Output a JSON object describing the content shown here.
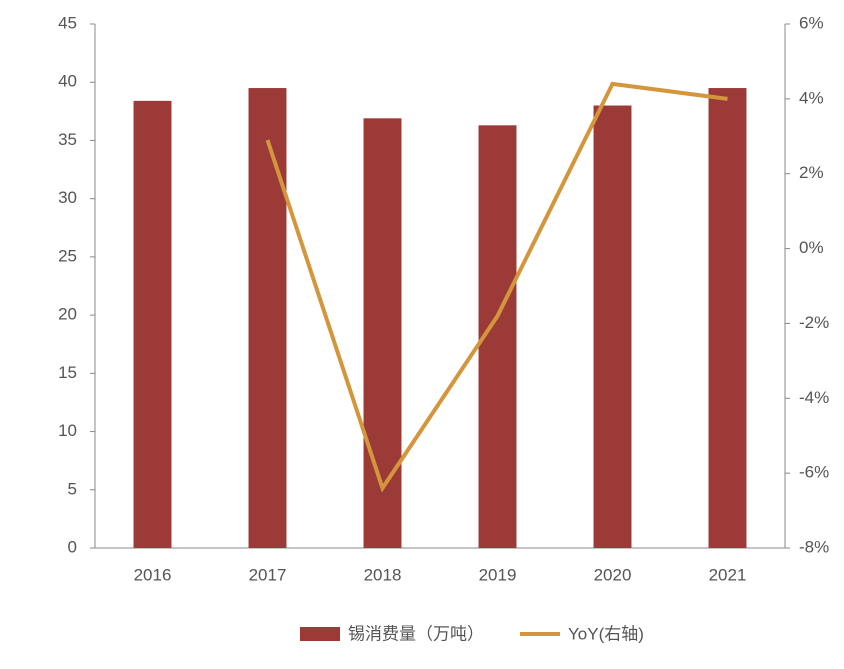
{
  "chart_data": {
    "type": "bar-line",
    "categories": [
      "2016",
      "2017",
      "2018",
      "2019",
      "2020",
      "2021"
    ],
    "series": [
      {
        "name": "锡消费量（万吨）",
        "type": "bar",
        "color": "#9b3a37",
        "values": [
          38.4,
          39.5,
          36.9,
          36.3,
          38.0,
          39.5
        ]
      },
      {
        "name": "YoY(右轴)",
        "type": "line",
        "axis": "y2",
        "color": "#d4963c",
        "values": [
          null,
          2.9,
          -6.4,
          -1.8,
          4.4,
          4.0
        ]
      }
    ],
    "ylim": [
      0,
      45
    ],
    "yticks": [
      0,
      5,
      10,
      15,
      20,
      25,
      30,
      35,
      40,
      45
    ],
    "y2lim": [
      -8,
      6
    ],
    "y2ticks": [
      {
        "value": -8,
        "label": "-8%"
      },
      {
        "value": -6,
        "label": "-6%"
      },
      {
        "value": -4,
        "label": "-4%"
      },
      {
        "value": -2,
        "label": "-2%"
      },
      {
        "value": 0,
        "label": "0%"
      },
      {
        "value": 2,
        "label": "2%"
      },
      {
        "value": 4,
        "label": "4%"
      },
      {
        "value": 6,
        "label": "6%"
      }
    ]
  }
}
